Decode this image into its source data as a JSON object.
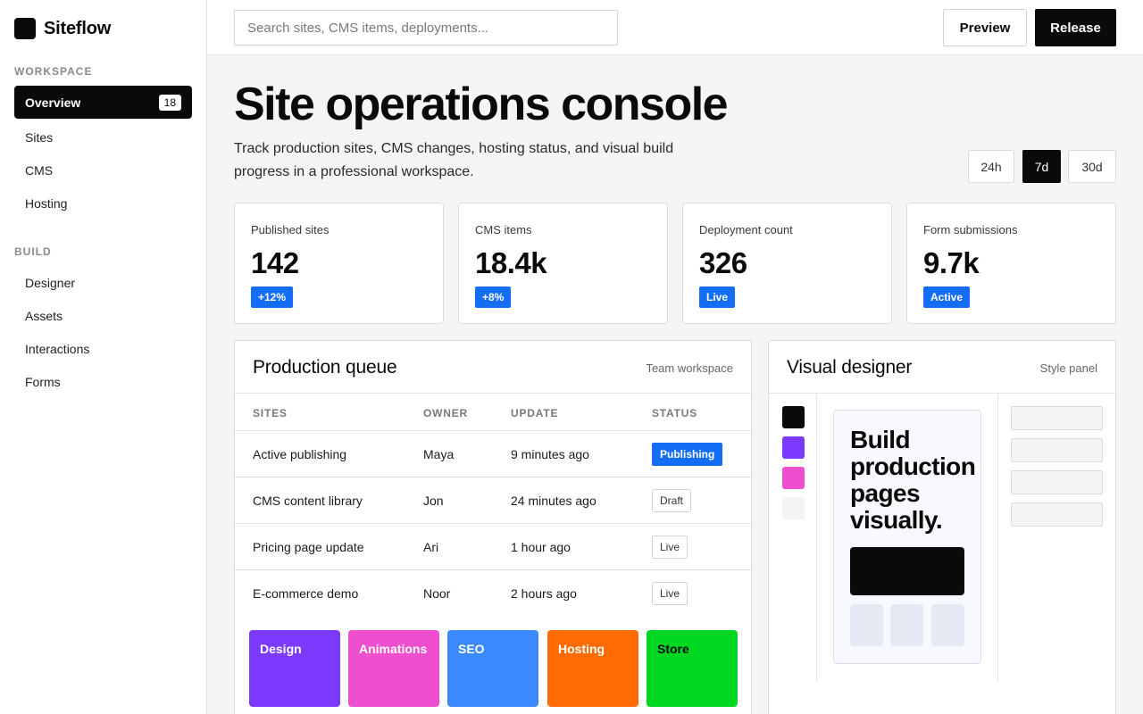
{
  "brand": {
    "name": "Siteflow",
    "logo_icon": "square-logo-icon"
  },
  "sidebar": {
    "workspace_label": "WORKSPACE",
    "workspace_items": [
      {
        "label": "Overview",
        "count": "18",
        "active": true
      },
      {
        "label": "Sites"
      },
      {
        "label": "CMS"
      },
      {
        "label": "Hosting"
      }
    ],
    "build_label": "BUILD",
    "build_items": [
      {
        "label": "Designer"
      },
      {
        "label": "Assets"
      },
      {
        "label": "Interactions"
      },
      {
        "label": "Forms"
      }
    ]
  },
  "topbar": {
    "search_placeholder": "Search sites, CMS items, deployments...",
    "preview_label": "Preview",
    "release_label": "Release"
  },
  "header": {
    "title": "Site operations console",
    "subtitle": "Track production sites, CMS changes, hosting status, and visual build progress in a professional workspace.",
    "ranges": [
      {
        "label": "24h",
        "active": false
      },
      {
        "label": "7d",
        "active": true
      },
      {
        "label": "30d",
        "active": false
      }
    ]
  },
  "stats": [
    {
      "label": "Published sites",
      "value": "142",
      "badge": "+12%"
    },
    {
      "label": "CMS items",
      "value": "18.4k",
      "badge": "+8%"
    },
    {
      "label": "Deployment count",
      "value": "326",
      "badge": "Live"
    },
    {
      "label": "Form submissions",
      "value": "9.7k",
      "badge": "Active"
    }
  ],
  "queue": {
    "title": "Production queue",
    "meta": "Team workspace",
    "columns": [
      "SITES",
      "OWNER",
      "UPDATE",
      "STATUS"
    ],
    "rows": [
      {
        "site": "Active publishing",
        "owner": "Maya",
        "update": "9 minutes ago",
        "status": "Publishing",
        "status_style": "filled"
      },
      {
        "site": "CMS content library",
        "owner": "Jon",
        "update": "24 minutes ago",
        "status": "Draft",
        "status_style": "outline"
      },
      {
        "site": "Pricing page update",
        "owner": "Ari",
        "update": "1 hour ago",
        "status": "Live",
        "status_style": "outline"
      },
      {
        "site": "E-commerce demo",
        "owner": "Noor",
        "update": "2 hours ago",
        "status": "Live",
        "status_style": "outline"
      }
    ],
    "tiles": [
      {
        "label": "Design",
        "color": "#7c3aff",
        "text_color": "#ffffff"
      },
      {
        "label": "Animations",
        "color": "#ee4fcf",
        "text_color": "#ffffff"
      },
      {
        "label": "SEO",
        "color": "#3b89ff",
        "text_color": "#ffffff"
      },
      {
        "label": "Hosting",
        "color": "#ff6b00",
        "text_color": "#ffffff"
      },
      {
        "label": "Store",
        "color": "#00d722",
        "text_color": "#0a0a0a"
      }
    ]
  },
  "designer": {
    "title": "Visual designer",
    "meta": "Style panel",
    "swatches": [
      "#0a0a0a",
      "#7c3aff",
      "#ee4fcf",
      "#f3f3f3"
    ],
    "canvas_heading": "Build production pages visually."
  },
  "colors": {
    "accent": "#146ef5",
    "dark": "#0a0a0a",
    "border": "#dcdcdc"
  }
}
